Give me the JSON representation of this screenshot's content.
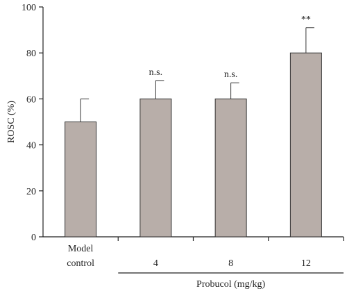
{
  "chart_data": {
    "type": "bar",
    "categories": [
      [
        "Model",
        "control"
      ],
      [
        "4"
      ],
      [
        "8"
      ],
      [
        "12"
      ]
    ],
    "values": [
      50,
      60,
      60,
      80
    ],
    "errors": [
      10,
      8,
      7,
      11
    ],
    "annotations": [
      "",
      "n.s.",
      "n.s.",
      "**"
    ],
    "ylabel": "ROSC (%)",
    "group_label": "Probucol (mg/kg)",
    "ylim": [
      0,
      100
    ],
    "yticks": [
      0,
      20,
      40,
      60,
      80,
      100
    ],
    "bar_color": "#b8aea9"
  }
}
